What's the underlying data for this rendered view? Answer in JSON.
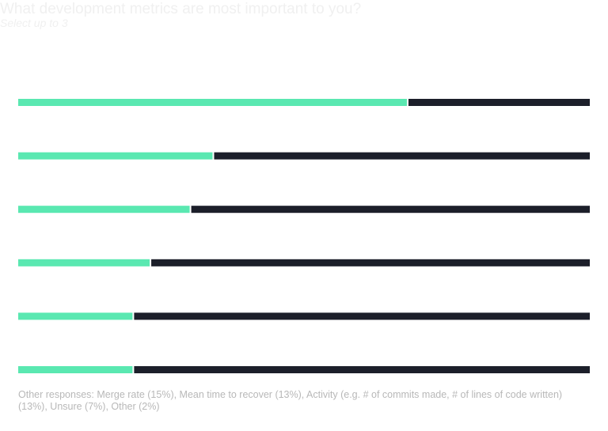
{
  "header": {
    "title": "What development metrics are most important to you?",
    "subtitle": "Select up to 3"
  },
  "footnote": "Other responses:  Merge rate (15%), Mean time to recover (13%), Activity (e.g. # of commits made, # of lines of code written) (13%), Unsure (7%), Other (2%)",
  "colors": {
    "value": "#5ae8b1",
    "remainder": "#1c1f2a",
    "background": "#ffffff"
  },
  "chart_data": {
    "type": "bar",
    "orientation": "horizontal",
    "stacked_to_100": true,
    "title": "What development metrics are most important to you?",
    "subtitle": "Select up to 3",
    "categories": [
      "",
      "",
      "",
      "",
      "",
      ""
    ],
    "values": [
      68,
      34,
      30,
      23,
      20,
      20
    ],
    "xlim": [
      0,
      100
    ],
    "grid": false,
    "legend": "none"
  }
}
